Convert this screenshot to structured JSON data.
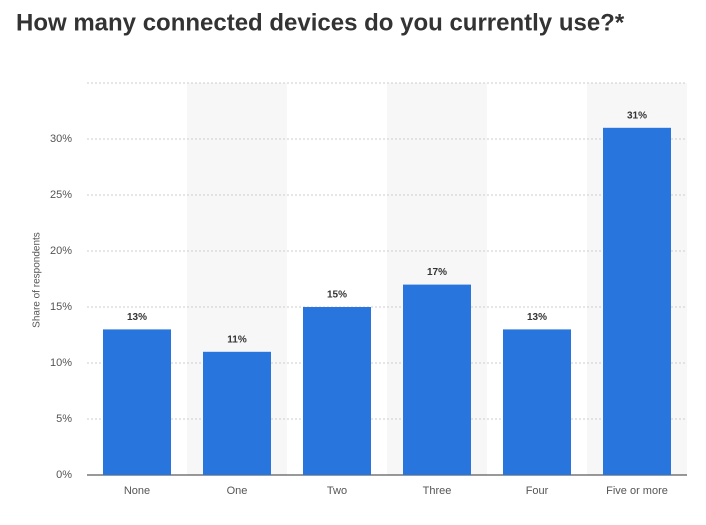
{
  "chart_data": {
    "type": "bar",
    "title": "How many connected devices do you currently use?*",
    "y_label": "Share of respondents",
    "categories": [
      "None",
      "One",
      "Two",
      "Three",
      "Four",
      "Five or more"
    ],
    "values": [
      13,
      11,
      15,
      17,
      13,
      31
    ],
    "value_labels": [
      "13%",
      "11%",
      "15%",
      "17%",
      "13%",
      "31%"
    ],
    "color": "#2876dd",
    "ylim": [
      0,
      35
    ],
    "yticks": [
      {
        "value": 0,
        "label": "0%"
      },
      {
        "value": 5,
        "label": "5%"
      },
      {
        "value": 10,
        "label": "10%"
      },
      {
        "value": 15,
        "label": "15%"
      },
      {
        "value": 20,
        "label": "20%"
      },
      {
        "value": 25,
        "label": "25%"
      },
      {
        "value": 30,
        "label": "30%"
      }
    ],
    "grid": true
  }
}
